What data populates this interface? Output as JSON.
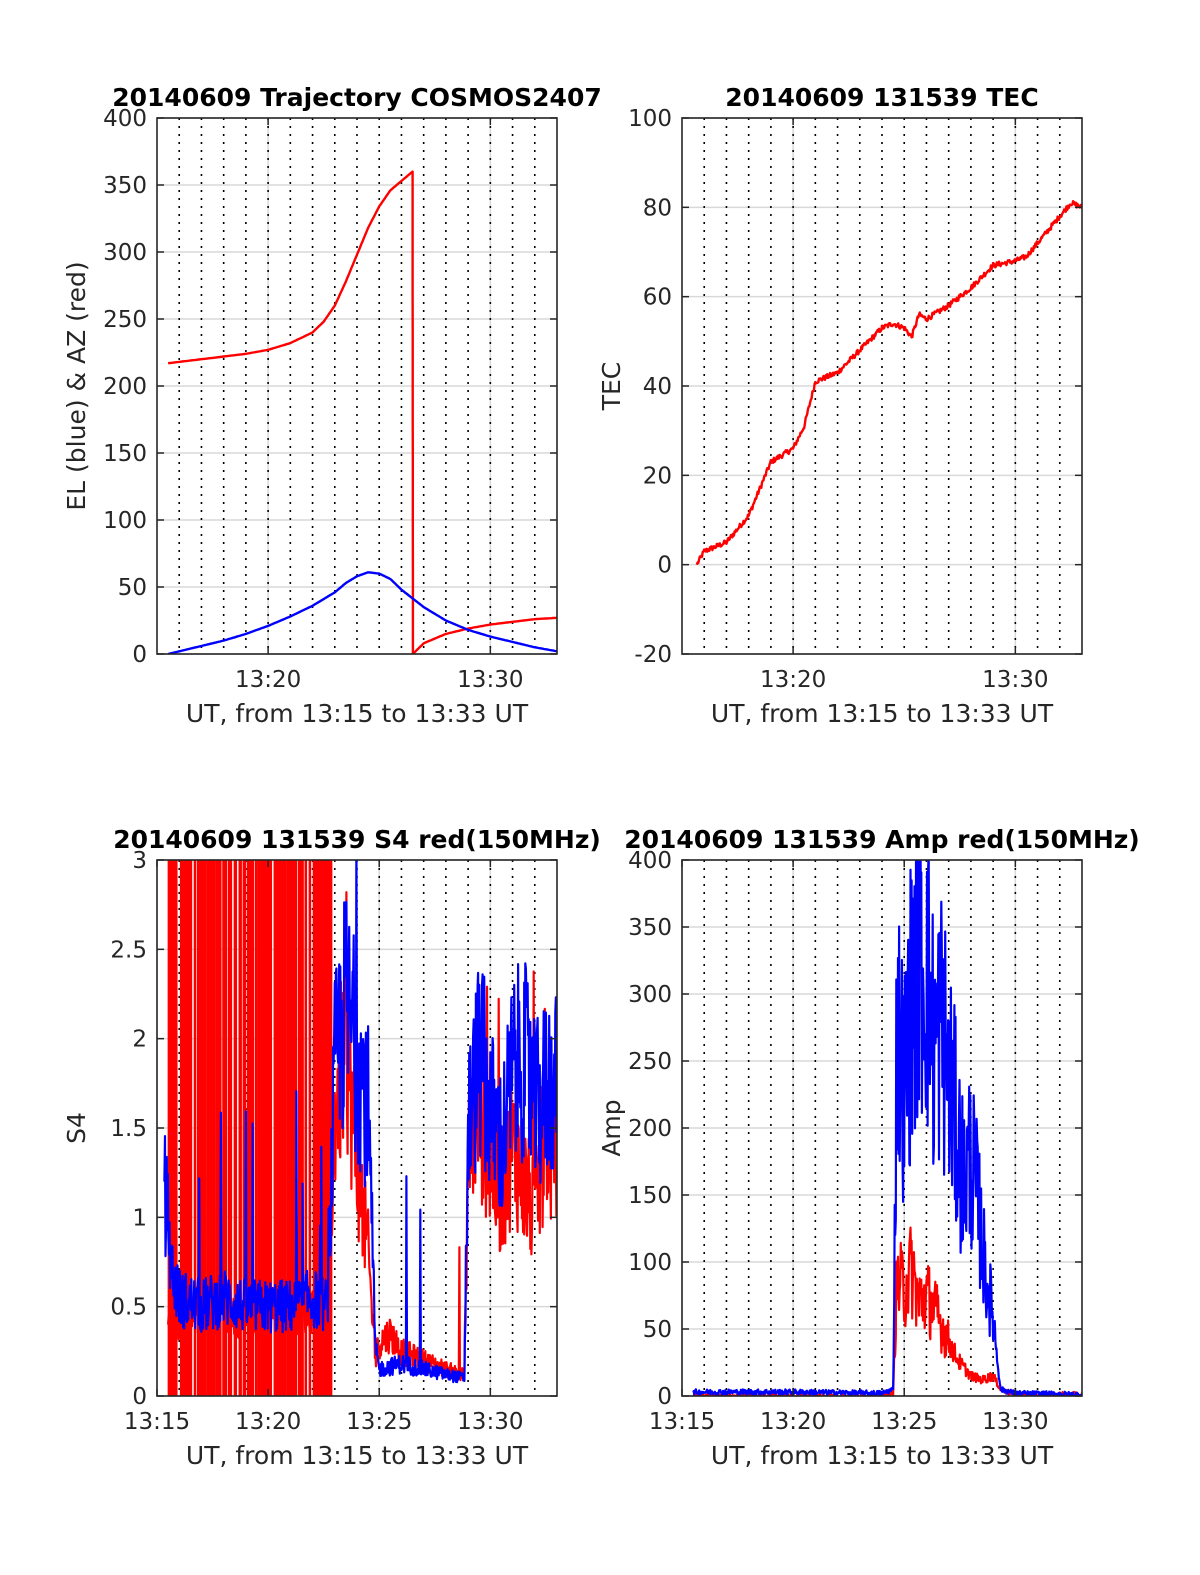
{
  "colors": {
    "red": "#ff0000",
    "blue": "#0000ff",
    "grid": "#d9d9d9",
    "axis": "#262626"
  },
  "chart_data": [
    {
      "id": "trajectory",
      "type": "line",
      "title": "20140609 Trajectory COSMOS2407",
      "xlabel": "UT, from 13:15 to 13:33 UT",
      "ylabel": "EL (blue) & AZ (red)",
      "xlim": [
        "13:15",
        "13:33"
      ],
      "ylim": [
        0,
        400
      ],
      "xticks": [
        "13:20",
        "13:30"
      ],
      "yticks": [
        "0",
        "50",
        "100",
        "150",
        "200",
        "250",
        "300",
        "350",
        "400"
      ],
      "grid": true,
      "series": [
        {
          "color": "red",
          "x": [
            "13:15:30",
            "13:17",
            "13:19",
            "13:20",
            "13:21",
            "13:22",
            "13:22:30",
            "13:23",
            "13:23:30",
            "13:24",
            "13:24:30",
            "13:25",
            "13:25:30",
            "13:26",
            "13:26:30",
            "13:26:31",
            "13:27",
            "13:28",
            "13:29",
            "13:30",
            "13:31",
            "13:32",
            "13:33"
          ],
          "y": [
            217,
            220,
            224,
            227,
            232,
            240,
            248,
            260,
            278,
            298,
            318,
            334,
            346,
            353,
            360,
            0,
            8,
            15,
            19,
            22,
            24,
            26,
            27
          ]
        },
        {
          "color": "blue",
          "x": [
            "13:15:30",
            "13:16",
            "13:17",
            "13:18",
            "13:19",
            "13:20",
            "13:21",
            "13:22",
            "13:23",
            "13:23:30",
            "13:24",
            "13:24:30",
            "13:25",
            "13:25:30",
            "13:26",
            "13:27",
            "13:28",
            "13:29",
            "13:30",
            "13:31",
            "13:32",
            "13:33"
          ],
          "y": [
            0,
            2,
            6,
            10,
            15,
            21,
            28,
            36,
            46,
            53,
            58,
            61,
            60,
            56,
            48,
            35,
            25,
            18,
            13,
            9,
            5,
            2
          ]
        }
      ]
    },
    {
      "id": "tec",
      "type": "line",
      "title": "20140609 131539 TEC",
      "xlabel": "UT, from 13:15 to 13:33 UT",
      "ylabel": "TEC",
      "xlim": [
        "13:15",
        "13:33"
      ],
      "ylim": [
        -20,
        100
      ],
      "xticks": [
        "13:20",
        "13:30"
      ],
      "yticks": [
        "-20",
        "0",
        "20",
        "40",
        "60",
        "80",
        "100"
      ],
      "grid": true,
      "series": [
        {
          "color": "red",
          "x": [
            "13:15:40",
            "13:16",
            "13:17",
            "13:18",
            "13:18:30",
            "13:19",
            "13:20",
            "13:20:30",
            "13:21",
            "13:21:30",
            "13:22",
            "13:23",
            "13:24",
            "13:24:30",
            "13:25",
            "13:25:20",
            "13:25:40",
            "13:26",
            "13:27",
            "13:28",
            "13:29",
            "13:30",
            "13:30:30",
            "13:31",
            "13:31:30",
            "13:32",
            "13:32:30",
            "13:33"
          ],
          "y": [
            0,
            3,
            5,
            11,
            17,
            23,
            26,
            31,
            41,
            42,
            43,
            48,
            53,
            54,
            53,
            51,
            56,
            55,
            58,
            62,
            67,
            68,
            69,
            72,
            75,
            78,
            81,
            80
          ]
        }
      ]
    },
    {
      "id": "s4",
      "type": "line",
      "title": "20140609 131539 S4 red(150MHz)",
      "xlabel": "UT, from 13:15 to 13:33 UT",
      "ylabel": "S4",
      "xlim": [
        "13:15",
        "13:33"
      ],
      "ylim": [
        0,
        3
      ],
      "xticks": [
        "13:15",
        "13:20",
        "13:25",
        "13:30"
      ],
      "yticks": [
        "0",
        "0.5",
        "1",
        "1.5",
        "2",
        "2.5",
        "3"
      ],
      "grid": true,
      "series": [
        {
          "color": "red",
          "x": [
            "13:15:30",
            "13:16",
            "13:17",
            "13:18",
            "13:19",
            "13:20",
            "13:21",
            "13:22",
            "13:22:40",
            "13:23",
            "13:23:30",
            "13:24",
            "13:24:30",
            "13:24:50",
            "13:25",
            "13:25:30",
            "13:26",
            "13:27",
            "13:28",
            "13:28:50",
            "13:29",
            "13:29:30",
            "13:30",
            "13:30:30",
            "13:31",
            "13:31:30",
            "13:32",
            "13:32:30",
            "13:33"
          ],
          "y": [
            0.4,
            0.45,
            0.5,
            0.5,
            0.45,
            0.45,
            0.5,
            0.5,
            0.5,
            1.6,
            2.0,
            1.3,
            0.8,
            0.2,
            0.3,
            0.35,
            0.25,
            0.2,
            0.15,
            0.12,
            1.4,
            1.6,
            1.3,
            1.1,
            1.4,
            1.2,
            1.0,
            1.5,
            1.2
          ],
          "spikes": {
            "x_range": [
              "13:15:30",
              "13:22:50"
            ],
            "low": 0,
            "high": 3
          }
        },
        {
          "color": "blue",
          "x": [
            "13:15:20",
            "13:15:40",
            "13:16",
            "13:17",
            "13:18",
            "13:19",
            "13:20",
            "13:21",
            "13:22",
            "13:22:40",
            "13:23",
            "13:23:30",
            "13:24",
            "13:24:30",
            "13:24:50",
            "13:25",
            "13:26",
            "13:27",
            "13:28",
            "13:28:50",
            "13:29",
            "13:29:30",
            "13:30",
            "13:30:30",
            "13:31",
            "13:31:30",
            "13:32",
            "13:32:30",
            "13:33"
          ],
          "y": [
            1.2,
            0.7,
            0.55,
            0.5,
            0.55,
            0.5,
            0.5,
            0.5,
            0.55,
            0.5,
            1.8,
            2.2,
            1.9,
            1.6,
            0.25,
            0.15,
            0.18,
            0.15,
            0.12,
            0.1,
            1.5,
            1.9,
            1.6,
            1.4,
            1.8,
            1.9,
            1.6,
            1.7,
            1.8
          ]
        }
      ]
    },
    {
      "id": "amp",
      "type": "line",
      "title": "20140609 131539 Amp red(150MHz)",
      "xlabel": "UT, from 13:15 to 13:33 UT",
      "ylabel": "Amp",
      "xlim": [
        "13:15",
        "13:33"
      ],
      "ylim": [
        0,
        400
      ],
      "xticks": [
        "13:15",
        "13:20",
        "13:25",
        "13:30"
      ],
      "yticks": [
        "0",
        "50",
        "100",
        "150",
        "200",
        "250",
        "300",
        "350",
        "400"
      ],
      "grid": true,
      "series": [
        {
          "color": "red",
          "x": [
            "13:15:30",
            "13:20",
            "13:24",
            "13:24:30",
            "13:24:40",
            "13:25",
            "13:25:20",
            "13:25:40",
            "13:26",
            "13:26:30",
            "13:27",
            "13:27:30",
            "13:28",
            "13:28:30",
            "13:29",
            "13:29:20",
            "13:30",
            "13:33"
          ],
          "y": [
            0,
            0,
            0,
            2,
            85,
            80,
            95,
            70,
            75,
            60,
            40,
            25,
            15,
            12,
            15,
            5,
            1,
            1
          ]
        },
        {
          "color": "blue",
          "x": [
            "13:15:30",
            "13:20",
            "13:24",
            "13:24:30",
            "13:24:40",
            "13:25",
            "13:25:20",
            "13:25:40",
            "13:26",
            "13:26:20",
            "13:26:40",
            "13:27",
            "13:27:20",
            "13:27:40",
            "13:28",
            "13:28:20",
            "13:28:40",
            "13:29",
            "13:29:20",
            "13:30",
            "13:33"
          ],
          "y": [
            3,
            3,
            2,
            5,
            280,
            230,
            300,
            335,
            320,
            260,
            280,
            240,
            200,
            160,
            180,
            140,
            90,
            60,
            5,
            2,
            1
          ]
        }
      ]
    }
  ]
}
